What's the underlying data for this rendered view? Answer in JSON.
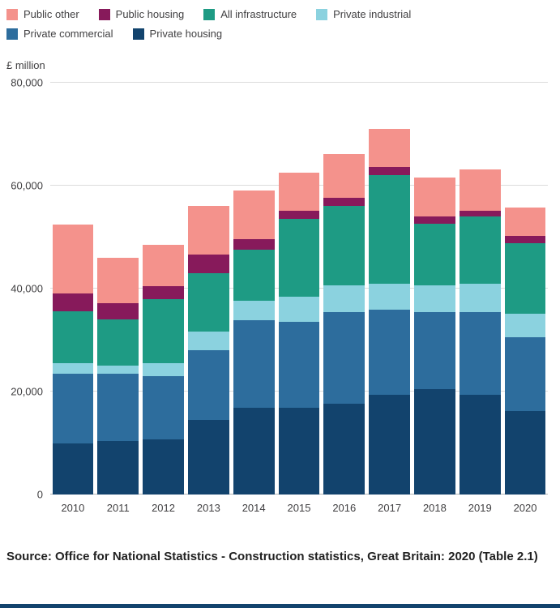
{
  "legend": [
    {
      "label": "Public other",
      "color": "#f4928c"
    },
    {
      "label": "Public housing",
      "color": "#871a5b"
    },
    {
      "label": "All infrastructure",
      "color": "#1e9b84"
    },
    {
      "label": "Private industrial",
      "color": "#8bd2df"
    },
    {
      "label": "Private commercial",
      "color": "#2d6d9d"
    },
    {
      "label": "Private housing",
      "color": "#12436d"
    }
  ],
  "axis": {
    "y_unit_label": "£ million",
    "y_ticks": [
      {
        "value": 0,
        "label": "0"
      },
      {
        "value": 20000,
        "label": "20,000"
      },
      {
        "value": 40000,
        "label": "40,000"
      },
      {
        "value": 60000,
        "label": "60,000"
      },
      {
        "value": 80000,
        "label": "80,000"
      }
    ]
  },
  "chart_data": {
    "type": "bar",
    "stacked": true,
    "title": "",
    "xlabel": "",
    "ylabel": "£ million",
    "ylim": [
      0,
      80000
    ],
    "grid": true,
    "legend_position": "top",
    "categories": [
      "2010",
      "2011",
      "2012",
      "2013",
      "2014",
      "2015",
      "2016",
      "2017",
      "2018",
      "2019",
      "2020"
    ],
    "series": [
      {
        "name": "Private housing",
        "color": "#12436d",
        "values": [
          10000,
          10400,
          10700,
          14500,
          16800,
          16800,
          17700,
          19300,
          20500,
          19300,
          16300
        ]
      },
      {
        "name": "Private commercial",
        "color": "#2d6d9d",
        "values": [
          13500,
          13100,
          12300,
          13600,
          17000,
          16700,
          17800,
          16600,
          15000,
          16100,
          14200
        ]
      },
      {
        "name": "Private industrial",
        "color": "#8bd2df",
        "values": [
          2000,
          1600,
          2500,
          3500,
          3800,
          5000,
          5100,
          5100,
          5100,
          5500,
          4600
        ]
      },
      {
        "name": "All infrastructure",
        "color": "#1e9b84",
        "values": [
          10100,
          9000,
          12500,
          11400,
          10000,
          15000,
          15500,
          21000,
          12000,
          13100,
          13800
        ]
      },
      {
        "name": "Public housing",
        "color": "#871a5b",
        "values": [
          3400,
          3000,
          2500,
          3600,
          2000,
          1600,
          1600,
          1600,
          1500,
          1100,
          1300
        ]
      },
      {
        "name": "Public other",
        "color": "#f4928c",
        "values": [
          13500,
          8900,
          8000,
          9400,
          9400,
          7500,
          8500,
          7400,
          7500,
          8100,
          5600
        ]
      }
    ]
  },
  "source": {
    "text": "Source: Office for National Statistics - Construction statistics, Great Britain: 2020 (Table 2.1)"
  }
}
